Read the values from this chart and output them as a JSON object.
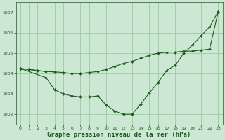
{
  "background_color": "#cce8d4",
  "grid_color": "#99cc99",
  "line_color": "#1a5c1a",
  "marker_color": "#1a5c1a",
  "xlabel": "Graphe pression niveau de la mer (hPa)",
  "xlabel_fontsize": 6.5,
  "ylim": [
    1001.5,
    1007.5
  ],
  "xlim": [
    -0.5,
    23.5
  ],
  "yticks": [
    1002,
    1003,
    1004,
    1005,
    1006,
    1007
  ],
  "xticks": [
    0,
    1,
    2,
    3,
    4,
    5,
    6,
    7,
    8,
    9,
    10,
    11,
    12,
    13,
    14,
    15,
    16,
    17,
    18,
    19,
    20,
    21,
    22,
    23
  ],
  "series1_x": [
    0,
    1,
    2,
    3
  ],
  "series1_y": [
    1004.25,
    1004.2,
    1004.15,
    1004.1
  ],
  "series2_x": [
    0,
    3,
    4,
    5,
    6,
    7,
    8,
    9,
    10,
    11,
    12,
    13,
    14,
    15,
    16,
    17,
    18,
    19,
    20,
    21,
    22,
    23
  ],
  "series2_y": [
    1004.25,
    1003.8,
    1003.2,
    1003.0,
    1002.9,
    1002.85,
    1002.85,
    1002.9,
    1002.45,
    1002.15,
    1002.0,
    1002.0,
    1002.5,
    1003.05,
    1003.55,
    1004.15,
    1004.4,
    1005.0,
    1005.4,
    1005.85,
    1006.3,
    1007.05
  ],
  "series3_x": [
    0,
    1,
    2,
    3,
    4,
    5,
    6,
    7,
    8,
    9,
    10,
    11,
    12,
    13,
    14,
    15,
    16,
    17,
    18,
    19,
    20,
    21,
    22,
    23
  ],
  "series3_y": [
    1004.25,
    1004.2,
    1004.15,
    1004.1,
    1004.08,
    1004.05,
    1004.0,
    1004.0,
    1004.05,
    1004.1,
    1004.2,
    1004.35,
    1004.5,
    1004.6,
    1004.75,
    1004.9,
    1005.0,
    1005.05,
    1005.05,
    1005.1,
    1005.1,
    1005.15,
    1005.2,
    1007.05
  ]
}
